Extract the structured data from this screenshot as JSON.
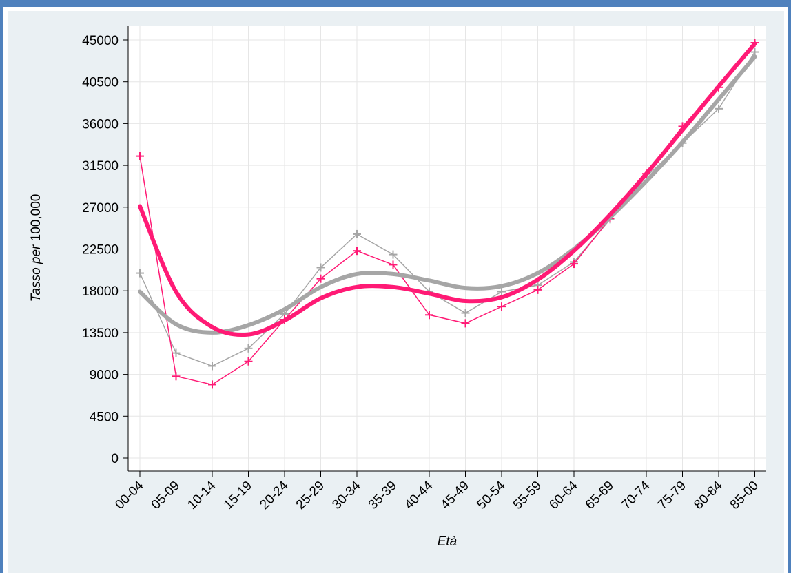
{
  "colors": {
    "frame": "#4f81bd",
    "panel_bg": "#eaf0f3",
    "plot_bg": "#ffffff",
    "grid": "#e6e6e6",
    "pink": "#ff1a75",
    "gray": "#a6a6a6"
  },
  "chart_data": {
    "type": "line",
    "title": "",
    "xlabel": "Età",
    "ylabel_parts": [
      "Tasso ",
      "per",
      " 100,000"
    ],
    "grid": true,
    "categories": [
      "00-04",
      "05-09",
      "10-14",
      "15-19",
      "20-24",
      "25-29",
      "30-34",
      "35-39",
      "40-44",
      "45-49",
      "50-54",
      "55-59",
      "60-64",
      "65-69",
      "70-74",
      "75-79",
      "80-84",
      "85-00"
    ],
    "yticks": [
      0,
      4500,
      9000,
      13500,
      18000,
      22500,
      27000,
      31500,
      36000,
      40500,
      45000
    ],
    "ylim": [
      0,
      45000
    ],
    "series": [
      {
        "color": "#a6a6a6",
        "style": "smooth-thick",
        "values": [
          17900,
          14400,
          13500,
          14300,
          16000,
          18400,
          19800,
          19800,
          19100,
          18300,
          18500,
          19900,
          22500,
          25900,
          29800,
          34000,
          38600,
          43200
        ]
      },
      {
        "color": "#ff1a75",
        "style": "smooth-thick",
        "values": [
          27100,
          17900,
          14100,
          13300,
          14800,
          17200,
          18400,
          18400,
          17700,
          16900,
          17300,
          19200,
          22300,
          26200,
          30600,
          35300,
          40000,
          44600
        ]
      },
      {
        "color": "#a6a6a6",
        "style": "marker-thin",
        "values": [
          19900,
          11300,
          9900,
          11800,
          15500,
          20500,
          24100,
          21900,
          17900,
          15600,
          17900,
          18600,
          21100,
          25700,
          30300,
          33900,
          37600,
          43700
        ]
      },
      {
        "color": "#ff1a75",
        "style": "marker-thin",
        "values": [
          32500,
          8800,
          7900,
          10400,
          14900,
          19300,
          22300,
          20800,
          15400,
          14500,
          16300,
          18100,
          20900,
          25800,
          30600,
          35700,
          39900,
          44700
        ]
      }
    ]
  }
}
